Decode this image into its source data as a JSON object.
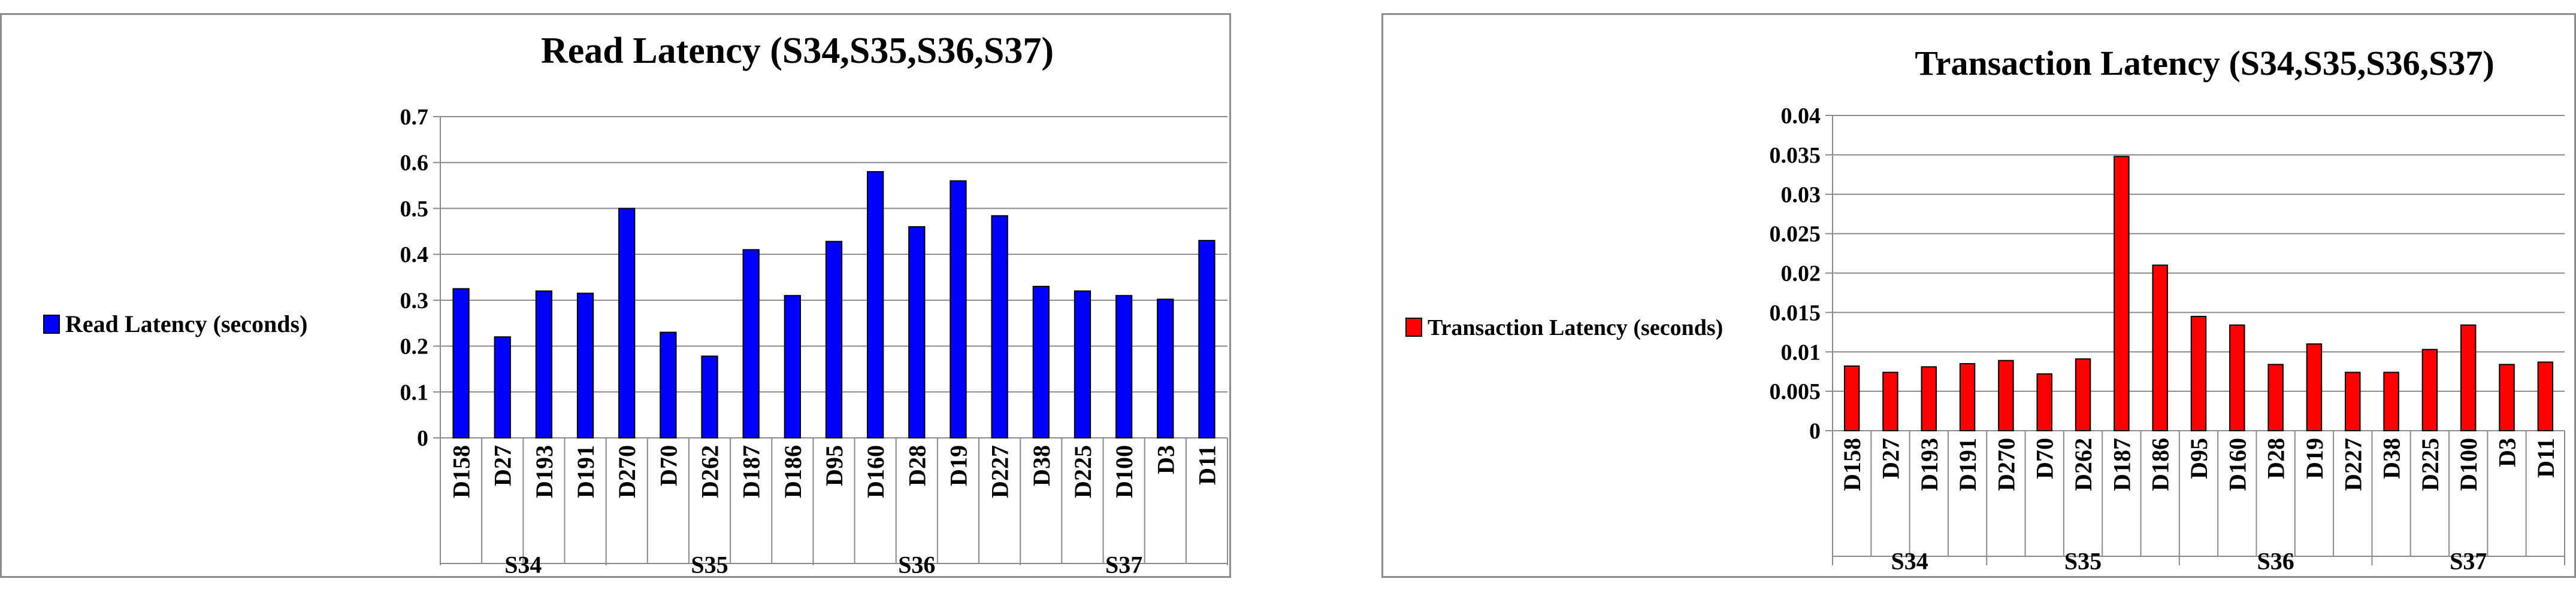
{
  "chart_data": [
    {
      "type": "bar",
      "title": "Read Latency (S34,S35,S36,S37)",
      "groups": [
        {
          "label": "S34",
          "categories": [
            "D158",
            "D27",
            "D193",
            "D191"
          ]
        },
        {
          "label": "S35",
          "categories": [
            "D270",
            "D70",
            "D262",
            "D187",
            "D186"
          ]
        },
        {
          "label": "S36",
          "categories": [
            "D95",
            "D160",
            "D28",
            "D19",
            "D227"
          ]
        },
        {
          "label": "S37",
          "categories": [
            "D38",
            "D225",
            "D100",
            "D3",
            "D11"
          ]
        }
      ],
      "categories": [
        "D158",
        "D27",
        "D193",
        "D191",
        "D270",
        "D70",
        "D262",
        "D187",
        "D186",
        "D95",
        "D160",
        "D28",
        "D19",
        "D227",
        "D38",
        "D225",
        "D100",
        "D3",
        "D11"
      ],
      "series": [
        {
          "name": "Read Latency (seconds)",
          "color": "#0000ff",
          "values": [
            0.325,
            0.22,
            0.32,
            0.315,
            0.5,
            0.23,
            0.178,
            0.41,
            0.31,
            0.428,
            0.58,
            0.46,
            0.56,
            0.484,
            0.33,
            0.32,
            0.31,
            0.302,
            0.43
          ]
        }
      ],
      "ylim": [
        0,
        0.7
      ],
      "yticks": [
        "0",
        "0.1",
        "0.2",
        "0.3",
        "0.4",
        "0.5",
        "0.6",
        "0.7"
      ],
      "grid": true,
      "legend": "left"
    },
    {
      "type": "bar",
      "title": "Transaction Latency (S34,S35,S36,S37)",
      "groups": [
        {
          "label": "S34",
          "categories": [
            "D158",
            "D27",
            "D193",
            "D191"
          ]
        },
        {
          "label": "S35",
          "categories": [
            "D270",
            "D70",
            "D262",
            "D187",
            "D186"
          ]
        },
        {
          "label": "S36",
          "categories": [
            "D95",
            "D160",
            "D28",
            "D19",
            "D227"
          ]
        },
        {
          "label": "S37",
          "categories": [
            "D38",
            "D225",
            "D100",
            "D3",
            "D11"
          ]
        }
      ],
      "categories": [
        "D158",
        "D27",
        "D193",
        "D191",
        "D270",
        "D70",
        "D262",
        "D187",
        "D186",
        "D95",
        "D160",
        "D28",
        "D19",
        "D227",
        "D38",
        "D225",
        "D100",
        "D3",
        "D11"
      ],
      "series": [
        {
          "name": "Transaction Latency (seconds)",
          "color": "#ff0000",
          "values": [
            0.0082,
            0.0074,
            0.0081,
            0.0085,
            0.0089,
            0.0072,
            0.0091,
            0.0348,
            0.021,
            0.0145,
            0.0134,
            0.0084,
            0.011,
            0.0074,
            0.0074,
            0.0103,
            0.0134,
            0.0084,
            0.0087
          ]
        }
      ],
      "ylim": [
        0,
        0.04
      ],
      "yticks": [
        "0",
        "0.005",
        "0.01",
        "0.015",
        "0.02",
        "0.025",
        "0.03",
        "0.035",
        "0.04"
      ],
      "grid": true,
      "legend": "left"
    }
  ]
}
